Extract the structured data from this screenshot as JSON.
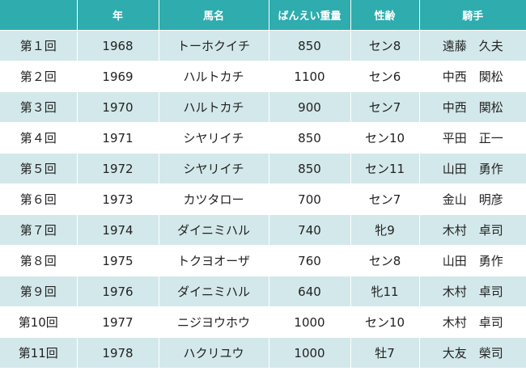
{
  "table": {
    "headers": [
      "",
      "年",
      "馬名",
      "ばんえい重量",
      "性齢",
      "騎手"
    ],
    "rows": [
      {
        "round": "第１回",
        "year": "1968",
        "horse": "トーホクイチ",
        "weight": "850",
        "sex_age": "セン8",
        "jockey": "遠藤　久夫"
      },
      {
        "round": "第２回",
        "year": "1969",
        "horse": "ハルトカチ",
        "weight": "1100",
        "sex_age": "セン6",
        "jockey": "中西　関松"
      },
      {
        "round": "第３回",
        "year": "1970",
        "horse": "ハルトカチ",
        "weight": "900",
        "sex_age": "セン7",
        "jockey": "中西　関松"
      },
      {
        "round": "第４回",
        "year": "1971",
        "horse": "シヤリイチ",
        "weight": "850",
        "sex_age": "セン10",
        "jockey": "平田　正一"
      },
      {
        "round": "第５回",
        "year": "1972",
        "horse": "シヤリイチ",
        "weight": "850",
        "sex_age": "セン11",
        "jockey": "山田　勇作"
      },
      {
        "round": "第６回",
        "year": "1973",
        "horse": "カツタロー",
        "weight": "700",
        "sex_age": "セン7",
        "jockey": "金山　明彦"
      },
      {
        "round": "第７回",
        "year": "1974",
        "horse": "ダイニミハル",
        "weight": "740",
        "sex_age": "牝9",
        "jockey": "木村　卓司"
      },
      {
        "round": "第８回",
        "year": "1975",
        "horse": "トクヨオーザ",
        "weight": "760",
        "sex_age": "セン8",
        "jockey": "山田　勇作"
      },
      {
        "round": "第９回",
        "year": "1976",
        "horse": "ダイニミハル",
        "weight": "640",
        "sex_age": "牝11",
        "jockey": "木村　卓司"
      },
      {
        "round": "第10回",
        "year": "1977",
        "horse": "ニジヨウホウ",
        "weight": "1000",
        "sex_age": "セン10",
        "jockey": "木村　卓司"
      },
      {
        "round": "第11回",
        "year": "1978",
        "horse": "ハクリユウ",
        "weight": "1000",
        "sex_age": "牡7",
        "jockey": "大友　榮司"
      }
    ]
  },
  "colors": {
    "header_bg": "#2eacae",
    "stripe_bg": "#d3e8ea"
  }
}
